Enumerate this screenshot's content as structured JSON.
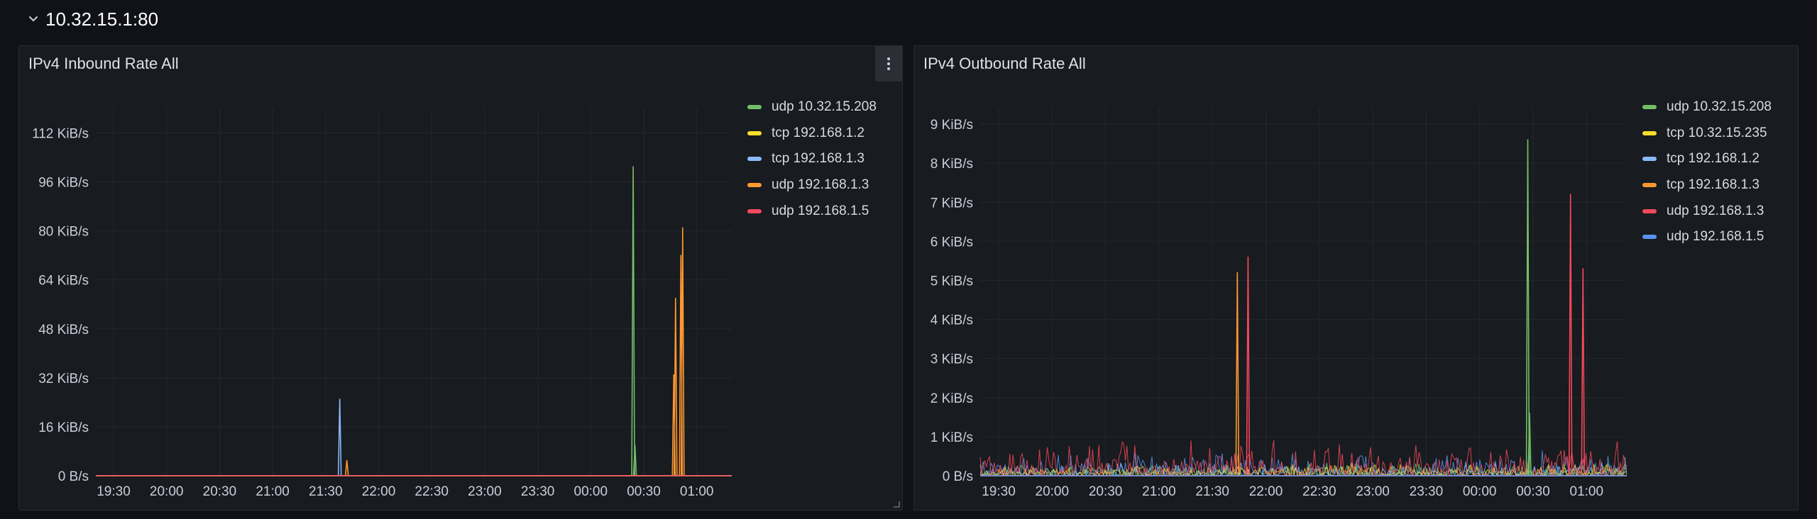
{
  "row": {
    "title": "10.32.15.1:80"
  },
  "panels": [
    {
      "title": "IPv4 Inbound Rate All",
      "legend": [
        {
          "label": "udp 10.32.15.208",
          "color": "#73bf69"
        },
        {
          "label": "tcp 192.168.1.2",
          "color": "#fade2a"
        },
        {
          "label": "tcp 192.168.1.3",
          "color": "#8ab8ff"
        },
        {
          "label": "udp 192.168.1.3",
          "color": "#ff9830"
        },
        {
          "label": "udp 192.168.1.5",
          "color": "#f2495c"
        }
      ]
    },
    {
      "title": "IPv4 Outbound Rate All",
      "legend": [
        {
          "label": "udp 10.32.15.208",
          "color": "#73bf69"
        },
        {
          "label": "tcp 10.32.15.235",
          "color": "#fade2a"
        },
        {
          "label": "tcp 192.168.1.2",
          "color": "#8ab8ff"
        },
        {
          "label": "tcp 192.168.1.3",
          "color": "#ff9830"
        },
        {
          "label": "udp 192.168.1.3",
          "color": "#f2495c"
        },
        {
          "label": "udp 192.168.1.5",
          "color": "#5794f2"
        }
      ]
    }
  ],
  "chart_data": [
    {
      "type": "line",
      "title": "IPv4 Inbound Rate All",
      "y_unit": "KiB/s",
      "ylim": [
        0,
        120
      ],
      "y_ticks": [
        "0 B/s",
        "16 KiB/s",
        "32 KiB/s",
        "48 KiB/s",
        "64 KiB/s",
        "80 KiB/s",
        "96 KiB/s",
        "112 KiB/s"
      ],
      "x_ticks": [
        "19:30",
        "20:00",
        "20:30",
        "21:00",
        "21:30",
        "22:00",
        "22:30",
        "23:00",
        "23:30",
        "00:00",
        "00:30",
        "01:00"
      ],
      "x_range": [
        "19:30",
        "01:00"
      ],
      "grid": true,
      "legend_position": "right",
      "series": [
        {
          "name": "udp 10.32.15.208",
          "color": "#73bf69",
          "peaks": [
            {
              "t": "00:24",
              "v": 101
            },
            {
              "t": "00:25",
              "v": 10
            }
          ]
        },
        {
          "name": "tcp 192.168.1.2",
          "color": "#fade2a",
          "peaks": []
        },
        {
          "name": "tcp 192.168.1.3",
          "color": "#8ab8ff",
          "peaks": [
            {
              "t": "21:38",
              "v": 25
            }
          ]
        },
        {
          "name": "udp 192.168.1.3",
          "color": "#ff9830",
          "peaks": [
            {
              "t": "21:42",
              "v": 5
            },
            {
              "t": "00:47",
              "v": 33
            },
            {
              "t": "00:48",
              "v": 58
            },
            {
              "t": "00:51",
              "v": 72
            },
            {
              "t": "00:52",
              "v": 81
            }
          ]
        },
        {
          "name": "udp 192.168.1.5",
          "color": "#f2495c",
          "peaks": []
        }
      ]
    },
    {
      "type": "line",
      "title": "IPv4 Outbound Rate All",
      "y_unit": "KiB/s",
      "ylim": [
        0,
        9.4
      ],
      "y_ticks": [
        "0 B/s",
        "1 KiB/s",
        "2 KiB/s",
        "3 KiB/s",
        "4 KiB/s",
        "5 KiB/s",
        "6 KiB/s",
        "7 KiB/s",
        "8 KiB/s",
        "9 KiB/s"
      ],
      "x_ticks": [
        "19:30",
        "20:00",
        "20:30",
        "21:00",
        "21:30",
        "22:00",
        "22:30",
        "23:00",
        "23:30",
        "00:00",
        "00:30",
        "01:00"
      ],
      "x_range": [
        "19:30",
        "01:00"
      ],
      "grid": true,
      "legend_position": "right",
      "series": [
        {
          "name": "udp 10.32.15.208",
          "color": "#73bf69",
          "peaks": [
            {
              "t": "00:27",
              "v": 8.6
            },
            {
              "t": "00:28",
              "v": 1.6
            }
          ]
        },
        {
          "name": "tcp 10.32.15.235",
          "color": "#fade2a",
          "peaks": []
        },
        {
          "name": "tcp 192.168.1.2",
          "color": "#8ab8ff",
          "peaks": []
        },
        {
          "name": "tcp 192.168.1.3",
          "color": "#ff9830",
          "peaks": [
            {
              "t": "21:44",
              "v": 5.2
            }
          ]
        },
        {
          "name": "udp 192.168.1.3",
          "color": "#f2495c",
          "peaks": [
            {
              "t": "21:50",
              "v": 5.6
            },
            {
              "t": "00:51",
              "v": 7.2
            },
            {
              "t": "00:58",
              "v": 5.3
            }
          ]
        },
        {
          "name": "udp 192.168.1.5",
          "color": "#5794f2",
          "peaks": []
        }
      ]
    }
  ]
}
